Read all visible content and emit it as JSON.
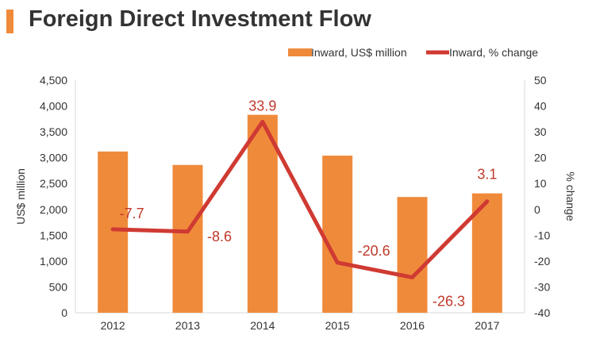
{
  "header": {
    "title": "Foreign Direct Investment Flow"
  },
  "colors": {
    "bar": "#f08a3b",
    "line": "#cf3a32",
    "accent": "#f08a3b"
  },
  "chart_data": {
    "type": "bar",
    "title": "Foreign Direct Investment Flow",
    "categories": [
      "2012",
      "2013",
      "2014",
      "2015",
      "2016",
      "2017"
    ],
    "series": [
      {
        "name": "Inward, US$ million",
        "type": "bar",
        "axis": "left",
        "values": [
          3120,
          2860,
          3830,
          3040,
          2240,
          2310
        ]
      },
      {
        "name": "Inward, % change",
        "type": "line",
        "axis": "right",
        "values": [
          -7.7,
          -8.6,
          33.9,
          -20.6,
          -26.3,
          3.1
        ],
        "labels": [
          "-7.7",
          "-8.6",
          "33.9",
          "-20.6",
          "-26.3",
          "3.1"
        ]
      }
    ],
    "ylabel": "US$ million",
    "ylim": [
      0,
      4500
    ],
    "yticks": [
      "0",
      "500",
      "1,000",
      "1,500",
      "2,000",
      "2,500",
      "3,000",
      "3,500",
      "4,000",
      "4,500"
    ],
    "y2label": "% change",
    "y2lim": [
      -40,
      50
    ],
    "y2ticks": [
      "-40",
      "-30",
      "-20",
      "-10",
      "0",
      "10",
      "20",
      "30",
      "40",
      "50"
    ],
    "legend": "top-right"
  }
}
